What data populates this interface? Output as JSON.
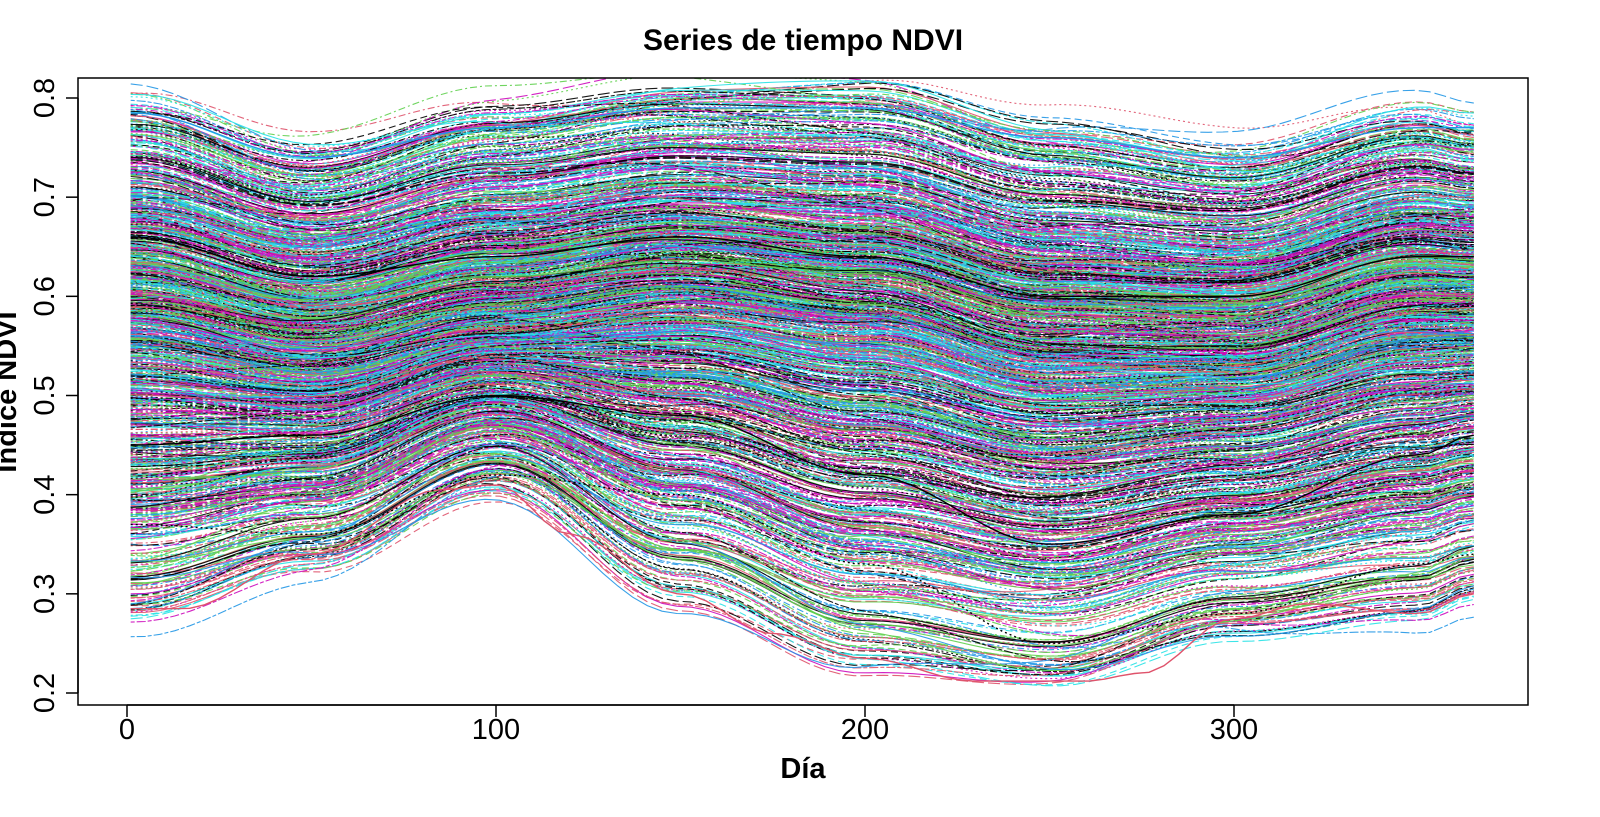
{
  "chart_data": {
    "type": "line",
    "title": "Series de tiempo NDVI",
    "xlabel": "Día",
    "ylabel": "Indice NDVI",
    "xlim": [
      1,
      365
    ],
    "ylim": [
      0.2,
      0.8
    ],
    "xticks": [
      0,
      100,
      200,
      300
    ],
    "yticks": [
      0.2,
      0.3,
      0.4,
      0.5,
      0.6,
      0.7,
      0.8
    ],
    "grid": false,
    "legend": "none",
    "series_count_approx": 1200,
    "line_colors": [
      "#000000",
      "#DF536B",
      "#61D04F",
      "#2297E6",
      "#28E2E5",
      "#CD0BBC",
      "#F5C710",
      "#9E9E9E"
    ],
    "line_styles": [
      "solid",
      "dashed",
      "dotted",
      "dotdash",
      "longdash",
      "twodash"
    ],
    "envelope": {
      "days": [
        1,
        50,
        100,
        150,
        200,
        250,
        300,
        350,
        365
      ],
      "upper": [
        0.79,
        0.74,
        0.78,
        0.8,
        0.8,
        0.76,
        0.74,
        0.78,
        0.77
      ],
      "median": [
        0.58,
        0.55,
        0.58,
        0.6,
        0.58,
        0.54,
        0.54,
        0.58,
        0.58
      ],
      "lower": [
        0.28,
        0.33,
        0.41,
        0.3,
        0.23,
        0.21,
        0.26,
        0.28,
        0.3
      ]
    },
    "series": [
      {
        "x": [
          1,
          15,
          50,
          85,
          100,
          120,
          150,
          175,
          200,
          230,
          260,
          275,
          300,
          320,
          350,
          365
        ],
        "y": [
          0.285,
          0.285,
          0.34,
          0.405,
          0.41,
          0.36,
          0.3,
          0.26,
          0.235,
          0.212,
          0.212,
          0.22,
          0.275,
          0.29,
          0.28,
          0.3
        ]
      },
      {
        "x": [
          1,
          50,
          100,
          150,
          200,
          250,
          300,
          350,
          365
        ],
        "y": [
          0.37,
          0.36,
          0.42,
          0.4,
          0.33,
          0.25,
          0.28,
          0.33,
          0.34
        ]
      },
      {
        "x": [
          1,
          50,
          100,
          150,
          200,
          250,
          300,
          350,
          365
        ],
        "y": [
          0.785,
          0.74,
          0.77,
          0.79,
          0.79,
          0.76,
          0.74,
          0.77,
          0.77
        ]
      },
      {
        "x": [
          1,
          50,
          100,
          150,
          200,
          250,
          300,
          350,
          365
        ],
        "y": [
          0.66,
          0.62,
          0.64,
          0.66,
          0.64,
          0.6,
          0.6,
          0.64,
          0.64
        ]
      },
      {
        "x": [
          1,
          50,
          100,
          150,
          200,
          250,
          300,
          350,
          365
        ],
        "y": [
          0.45,
          0.46,
          0.5,
          0.48,
          0.42,
          0.35,
          0.38,
          0.44,
          0.46
        ]
      }
    ]
  }
}
